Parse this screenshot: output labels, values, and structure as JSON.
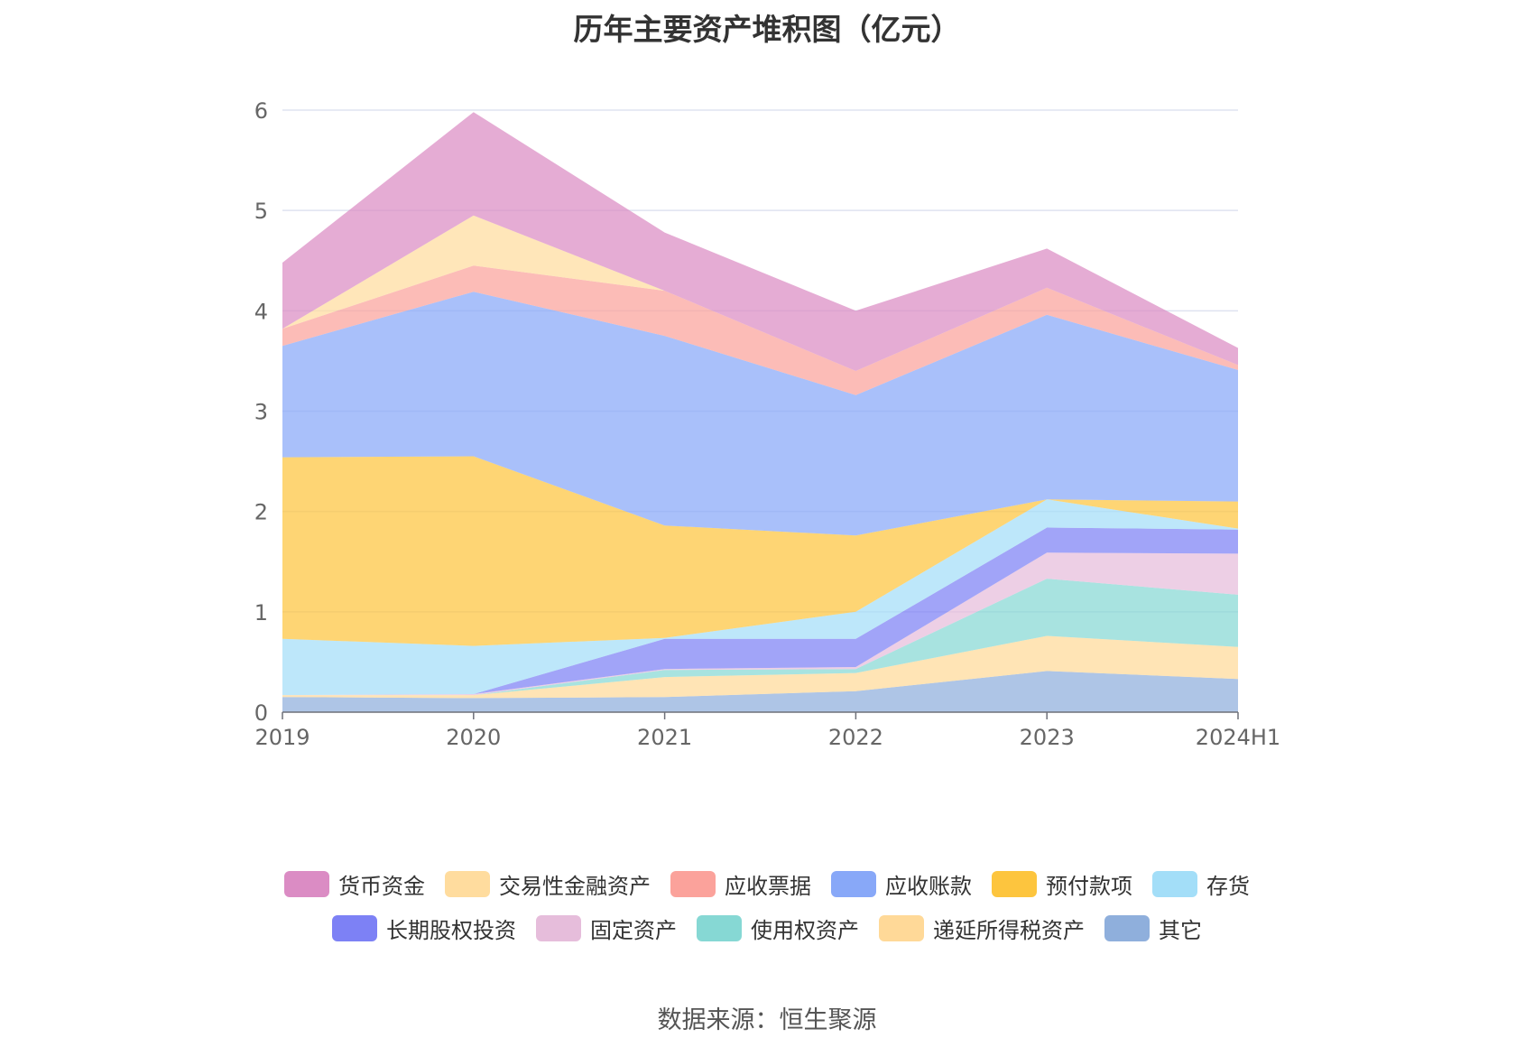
{
  "chart_data": {
    "type": "area",
    "stacked": true,
    "title": "历年主要资产堆积图（亿元）",
    "x": [
      "2019",
      "2020",
      "2021",
      "2022",
      "2023",
      "2024H1"
    ],
    "ylim": [
      0,
      6
    ],
    "yticks": [
      "0",
      "1",
      "2",
      "3",
      "4",
      "5",
      "6"
    ],
    "grid": true,
    "legend_position": "bottom",
    "series": [
      {
        "name": "其它",
        "color": "#8fafdc",
        "values": [
          0.15,
          0.14,
          0.15,
          0.21,
          0.41,
          0.33
        ]
      },
      {
        "name": "递延所得税资产",
        "color": "#ffd998",
        "values": [
          0.02,
          0.03,
          0.2,
          0.18,
          0.35,
          0.32
        ]
      },
      {
        "name": "使用权资产",
        "color": "#86d8d4",
        "values": [
          0,
          0,
          0.07,
          0.04,
          0.57,
          0.52
        ]
      },
      {
        "name": "固定资产",
        "color": "#e6bddb",
        "values": [
          0,
          0.01,
          0.01,
          0.02,
          0.26,
          0.41
        ]
      },
      {
        "name": "长期股权投资",
        "color": "#7d81f5",
        "values": [
          0,
          0,
          0.3,
          0.28,
          0.25,
          0.24
        ]
      },
      {
        "name": "存货",
        "color": "#a3def8",
        "values": [
          0.56,
          0.48,
          0.01,
          0.27,
          0.28,
          0.01
        ]
      },
      {
        "name": "预付款项",
        "color": "#fdc53e",
        "values": [
          1.81,
          1.89,
          1.12,
          0.76,
          0,
          0.27
        ]
      },
      {
        "name": "应收账款",
        "color": "#88a8f8",
        "values": [
          1.11,
          1.64,
          1.89,
          1.4,
          1.84,
          1.31
        ]
      },
      {
        "name": "应收票据",
        "color": "#fba29b",
        "values": [
          0.17,
          0.26,
          0.45,
          0.24,
          0.27,
          0.05
        ]
      },
      {
        "name": "交易性金融资产",
        "color": "#ffdc9e",
        "values": [
          0,
          0.5,
          0,
          0,
          0,
          0
        ]
      },
      {
        "name": "货币资金",
        "color": "#db8cc4",
        "values": [
          0.66,
          1.03,
          0.58,
          0.6,
          0.39,
          0.17
        ]
      }
    ]
  },
  "legend": {
    "row1": [
      {
        "label": "货币资金",
        "color": "#db8cc4"
      },
      {
        "label": "交易性金融资产",
        "color": "#ffdc9e"
      },
      {
        "label": "应收票据",
        "color": "#fba29b"
      },
      {
        "label": "应收账款",
        "color": "#88a8f8"
      },
      {
        "label": "预付款项",
        "color": "#fdc53e"
      },
      {
        "label": "存货",
        "color": "#a3def8"
      }
    ],
    "row2": [
      {
        "label": "长期股权投资",
        "color": "#7d81f5"
      },
      {
        "label": "固定资产",
        "color": "#e6bddb"
      },
      {
        "label": "使用权资产",
        "color": "#86d8d4"
      },
      {
        "label": "递延所得税资产",
        "color": "#ffd998"
      },
      {
        "label": "其它",
        "color": "#8fafdc"
      }
    ]
  },
  "source": "数据来源：恒生聚源"
}
